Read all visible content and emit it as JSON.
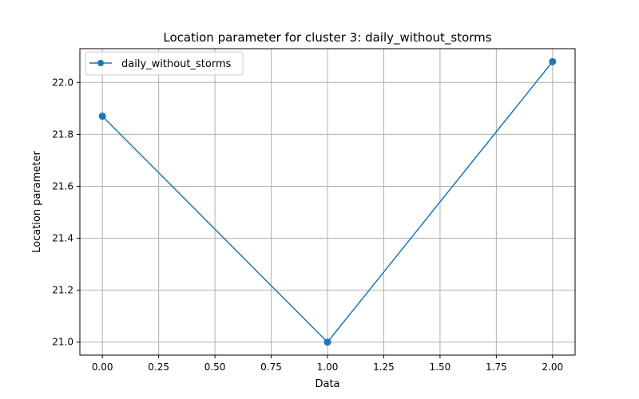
{
  "chart_data": {
    "type": "line",
    "title": "Location parameter for cluster 3: daily_without_storms",
    "xlabel": "Data",
    "ylabel": "Location parameter",
    "xlim": [
      -0.1,
      2.1
    ],
    "ylim": [
      20.95,
      22.13
    ],
    "xticks": [
      0.0,
      0.25,
      0.5,
      0.75,
      1.0,
      1.25,
      1.5,
      1.75,
      2.0
    ],
    "xtick_labels": [
      "0.00",
      "0.25",
      "0.50",
      "0.75",
      "1.00",
      "1.25",
      "1.50",
      "1.75",
      "2.00"
    ],
    "yticks": [
      21.0,
      21.2,
      21.4,
      21.6,
      21.8,
      22.0
    ],
    "ytick_labels": [
      "21.0",
      "21.2",
      "21.4",
      "21.6",
      "21.8",
      "22.0"
    ],
    "grid": true,
    "legend_position": "top-left",
    "series": [
      {
        "name": "daily_without_storms",
        "color": "#1f77b4",
        "marker": "circle",
        "x": [
          0,
          1,
          2
        ],
        "y": [
          21.87,
          21.0,
          22.08
        ]
      }
    ]
  }
}
